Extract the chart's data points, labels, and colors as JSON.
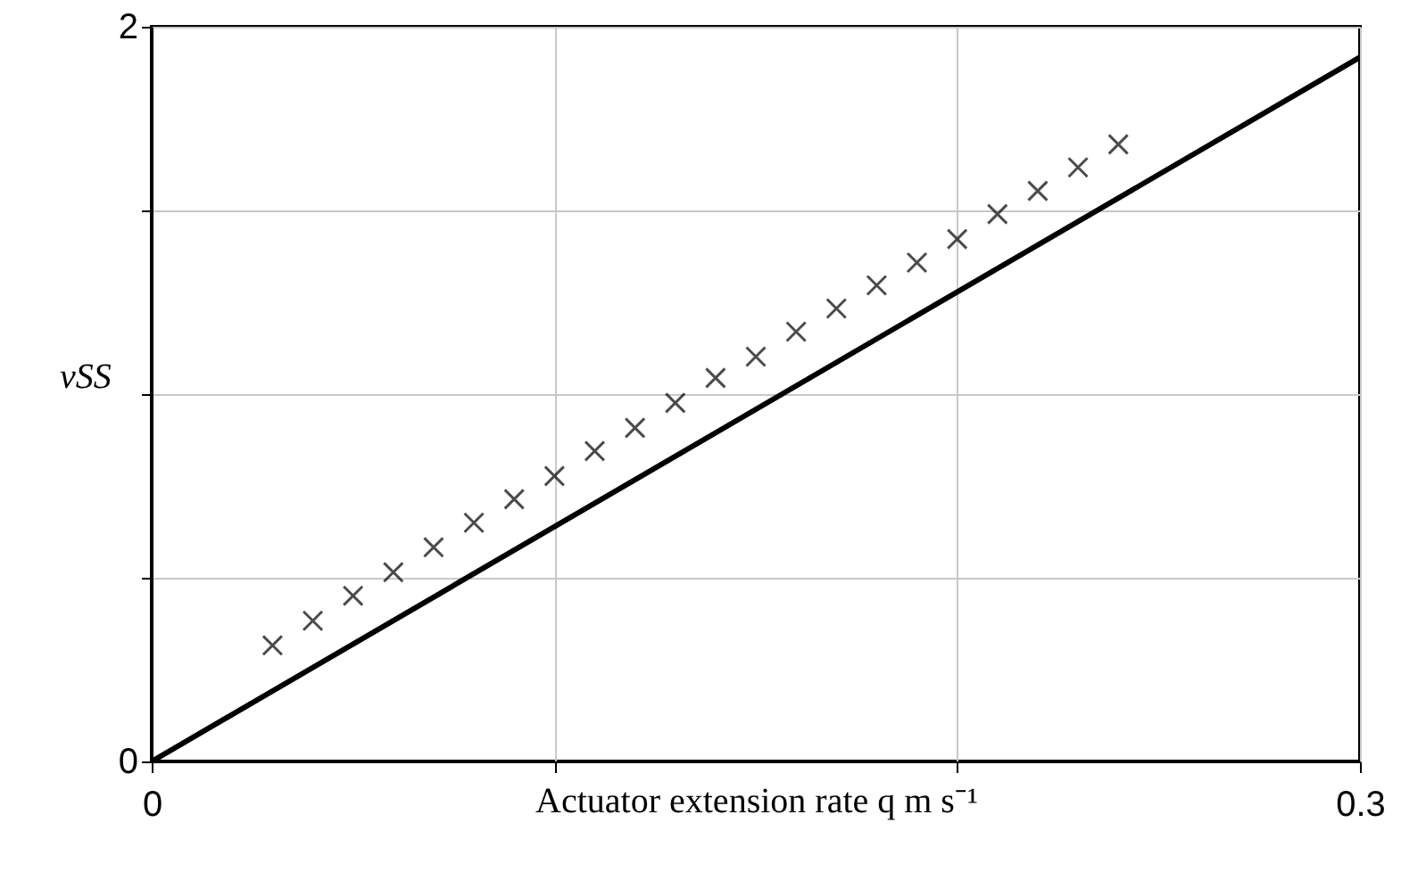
{
  "chart_data": {
    "type": "scatter",
    "xlabel": "Actuator extension rate q m s⁻¹",
    "ylabel": "vSS",
    "marker": "cross",
    "grid": true,
    "xlim": [
      0,
      0.3
    ],
    "xticks": [
      0,
      {
        "value": 0.1,
        "label": null
      },
      {
        "value": 0.2,
        "label": null
      },
      0.3
    ],
    "ylim": [
      0,
      2
    ],
    "yticks": [
      0,
      {
        "value": 0.5,
        "label": null
      },
      {
        "value": 1,
        "label": null
      },
      {
        "value": 1.5,
        "label": null
      },
      2
    ],
    "series": [
      {
        "type": "line",
        "marker": "none",
        "color": "#000000",
        "x": [
          0,
          0.3
        ],
        "values": [
          0,
          1.917
        ]
      },
      {
        "color": "#000000",
        "x": [
          0.03,
          0.04,
          0.05,
          0.06,
          0.07,
          0.08,
          0.09,
          0.1,
          0.11,
          0.12,
          0.13,
          0.14,
          0.15,
          0.16,
          0.17,
          0.18,
          0.19,
          0.2,
          0.21,
          0.22,
          0.23,
          0.24
        ],
        "values": [
          0.316,
          0.383,
          0.451,
          0.515,
          0.583,
          0.65,
          0.714,
          0.777,
          0.845,
          0.908,
          0.976,
          1.044,
          1.102,
          1.17,
          1.233,
          1.296,
          1.358,
          1.422,
          1.49,
          1.553,
          1.617,
          1.68
        ]
      }
    ]
  }
}
